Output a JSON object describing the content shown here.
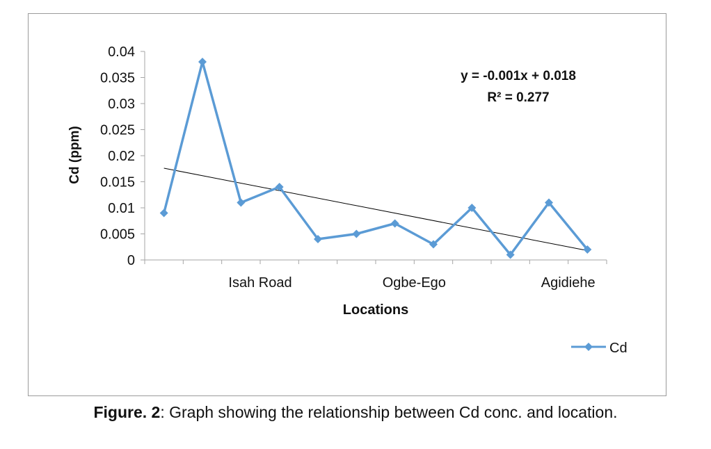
{
  "chart_data": {
    "type": "line",
    "xlabel": "Locations",
    "ylabel": "Cd (ppm)",
    "ylim": [
      0,
      0.04
    ],
    "yticks": [
      "0",
      "0.005",
      "0.01",
      "0.015",
      "0.02",
      "0.025",
      "0.03",
      "0.035",
      "0.04"
    ],
    "category_labels": [
      {
        "label": "Isah Road",
        "at": 3
      },
      {
        "label": "Ogbe-Ego",
        "at": 7
      },
      {
        "label": "Agidiehe",
        "at": 11
      }
    ],
    "point_count": 12,
    "series": [
      {
        "name": "Cd",
        "color": "#5b9bd5",
        "marker": "diamond",
        "values": [
          0.009,
          0.038,
          0.011,
          0.014,
          0.004,
          0.005,
          0.007,
          0.003,
          0.01,
          0.001,
          0.011,
          0.002
        ]
      }
    ],
    "trendline": {
      "y_start": 0.0176,
      "y_end": 0.0018,
      "color": "#000000"
    },
    "equation_line1": "y = -0.001x + 0.018",
    "equation_line2": "R² = 0.277",
    "legend_position": "bottom-right",
    "grid": false
  },
  "caption": {
    "label": "Figure. 2",
    "text": ": Graph showing the relationship between Cd conc. and location."
  }
}
